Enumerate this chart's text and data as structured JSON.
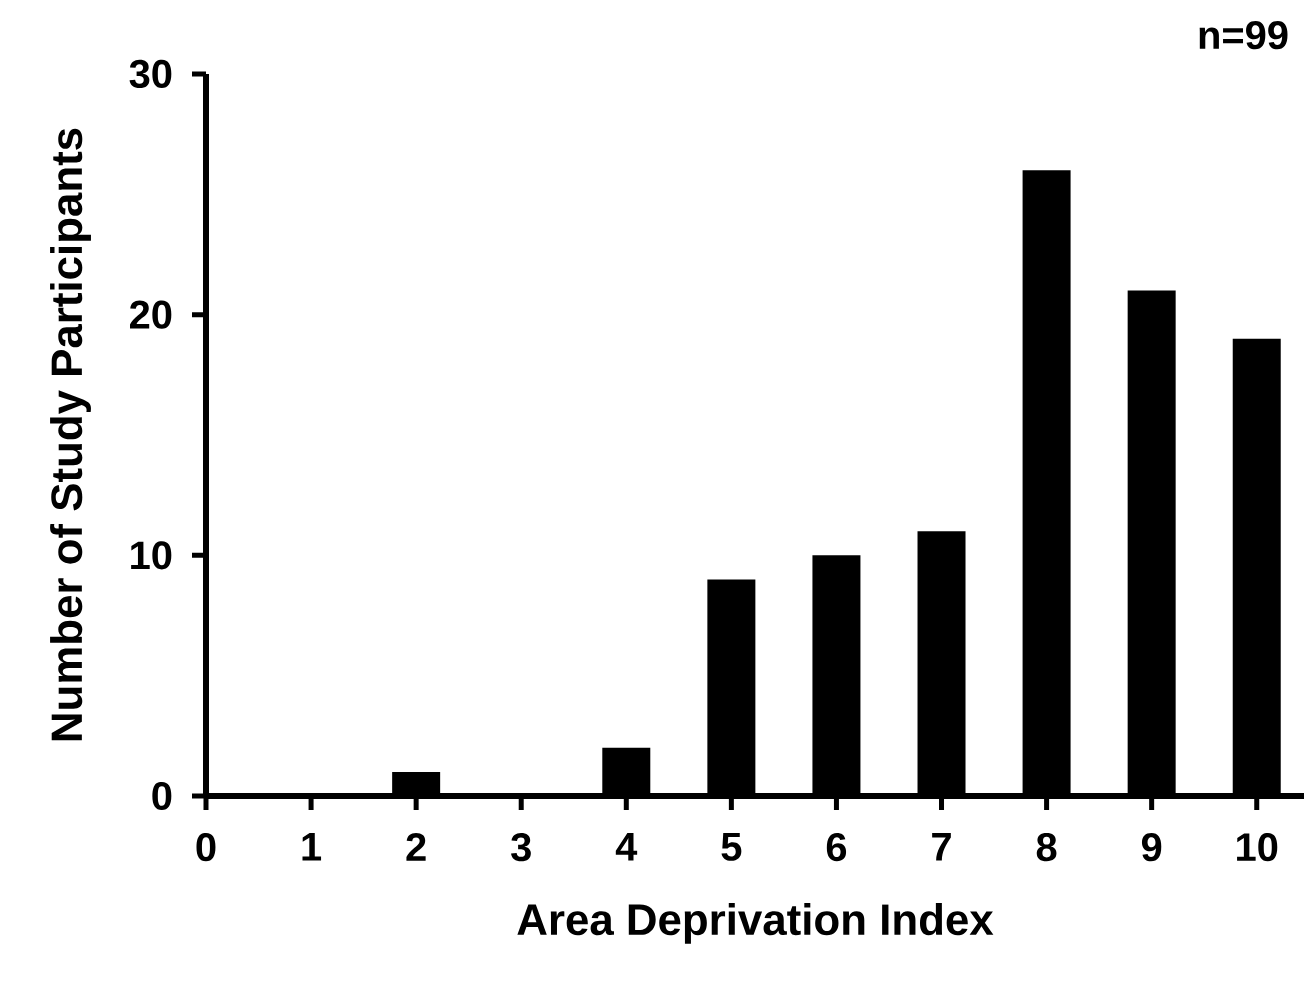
{
  "chart_data": {
    "type": "bar",
    "xlabel": "Area Deprivation Index",
    "ylabel": "Number of Study Participants",
    "categories": [
      "0",
      "1",
      "2",
      "3",
      "4",
      "5",
      "6",
      "7",
      "8",
      "9",
      "10"
    ],
    "values": [
      0,
      0,
      1,
      0,
      2,
      9,
      10,
      11,
      26,
      21,
      19
    ],
    "color": "#000000",
    "ylim": [
      0,
      30
    ],
    "yticks": [
      0,
      10,
      20,
      30
    ],
    "annotations": [
      "n=99"
    ]
  }
}
